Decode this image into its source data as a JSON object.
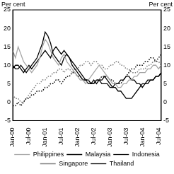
{
  "chart_data": {
    "type": "line",
    "y_label": "Per cent",
    "categories": [
      "Jan-00",
      null,
      null,
      null,
      null,
      null,
      "Jul-00",
      null,
      null,
      null,
      null,
      null,
      "Jan-01",
      null,
      null,
      null,
      null,
      null,
      "Jul-01",
      null,
      null,
      null,
      null,
      null,
      "Jan-02",
      null,
      null,
      null,
      null,
      null,
      "Jul-02",
      null,
      null,
      null,
      null,
      null,
      "Jan-03",
      null,
      null,
      null,
      null,
      null,
      "Jul-03",
      null,
      null,
      null,
      null,
      null,
      "Jan-04",
      null,
      null,
      null,
      null,
      null,
      "Jul-04",
      null
    ],
    "series": [
      {
        "name": "Philippines",
        "color": "#a6a6a6",
        "line_style": "solid",
        "values": [
          14,
          12,
          15,
          13,
          11,
          10,
          9,
          8,
          9,
          10,
          12,
          15,
          17,
          16,
          14,
          12,
          11,
          10,
          12,
          13,
          11,
          10,
          9,
          8,
          7,
          6,
          6,
          5,
          6,
          7,
          8,
          9,
          10,
          9,
          8,
          7,
          6,
          5,
          5,
          4,
          4,
          5,
          5,
          6,
          6,
          7,
          7,
          8,
          8,
          8,
          9,
          9,
          10,
          10,
          9,
          10
        ]
      },
      {
        "name": "Malaysia",
        "color": "#000000",
        "line_style": "dotted",
        "values": [
          -1,
          -1,
          0,
          -1,
          0,
          1,
          1,
          2,
          2,
          3,
          3,
          3,
          4,
          4,
          5,
          5,
          6,
          6,
          5,
          6,
          7,
          7,
          8,
          8,
          7,
          7,
          6,
          6,
          6,
          5,
          5,
          6,
          6,
          7,
          7,
          7,
          6,
          6,
          5,
          5,
          5,
          6,
          7,
          8,
          9,
          9,
          10,
          10,
          10,
          11,
          11,
          12,
          12,
          11,
          12,
          13
        ]
      },
      {
        "name": "Indonesia",
        "color": "#000000",
        "line_style": "solid",
        "values": [
          10,
          9,
          9,
          10,
          9,
          8,
          9,
          10,
          11,
          12,
          14,
          16,
          19,
          18,
          16,
          13,
          12,
          11,
          10,
          12,
          13,
          12,
          10,
          9,
          8,
          7,
          6,
          6,
          5,
          5,
          6,
          5,
          6,
          6,
          7,
          6,
          5,
          4,
          4,
          3,
          3,
          2,
          1,
          1,
          1,
          2,
          3,
          4,
          5,
          5,
          6,
          6,
          6,
          7,
          7,
          8
        ]
      },
      {
        "name": "Singapore",
        "color": "#7f7f7f",
        "line_style": "dotted",
        "values": [
          2,
          1,
          1,
          0,
          0,
          1,
          2,
          3,
          4,
          5,
          5,
          6,
          6,
          7,
          7,
          8,
          8,
          9,
          9,
          8,
          9,
          9,
          8,
          9,
          9,
          10,
          10,
          11,
          11,
          10,
          11,
          11,
          10,
          10,
          9,
          9,
          10,
          10,
          11,
          11,
          10,
          10,
          9,
          9,
          8,
          8,
          8,
          9,
          9,
          9,
          10,
          10,
          11,
          11,
          11,
          10
        ]
      },
      {
        "name": "Thailand",
        "color": "#000000",
        "line_style": "solid",
        "values": [
          9,
          10,
          10,
          9,
          8,
          9,
          10,
          9,
          10,
          11,
          12,
          13,
          14,
          13,
          12,
          14,
          15,
          14,
          13,
          14,
          13,
          12,
          11,
          10,
          9,
          8,
          7,
          6,
          6,
          5,
          5,
          6,
          6,
          5,
          5,
          5,
          4,
          4,
          5,
          5,
          6,
          6,
          7,
          7,
          6,
          6,
          5,
          5,
          4,
          5,
          5,
          6,
          6,
          7,
          7,
          8
        ]
      }
    ],
    "ylim": [
      -5,
      25
    ],
    "yticks": [
      -5,
      0,
      5,
      10,
      15,
      20,
      25
    ],
    "grid": false,
    "legend": "bottom"
  }
}
